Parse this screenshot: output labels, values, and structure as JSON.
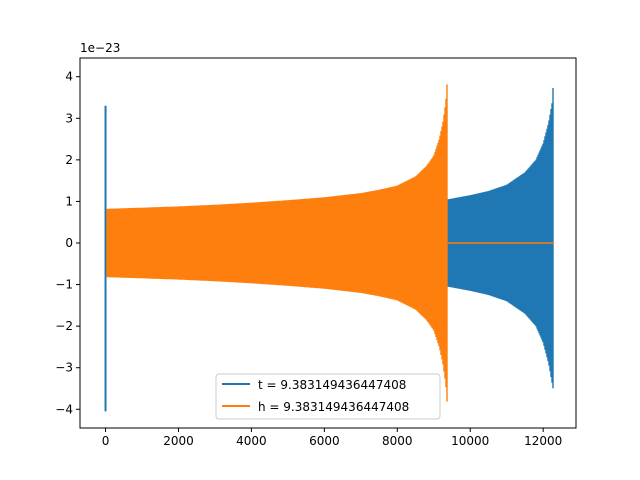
{
  "chart_data": {
    "type": "line",
    "y_offset_label": "1e−23",
    "xlim": [
      -700,
      12900
    ],
    "ylim": [
      -4.45,
      4.45
    ],
    "x_ticks": [
      0,
      2000,
      4000,
      6000,
      8000,
      10000,
      12000
    ],
    "x_tick_labels": [
      "0",
      "2000",
      "4000",
      "6000",
      "8000",
      "10000",
      "12000"
    ],
    "y_ticks": [
      -4,
      -3,
      -2,
      -1,
      0,
      1,
      2,
      3,
      4
    ],
    "y_tick_labels": [
      "−4",
      "−3",
      "−2",
      "−1",
      "0",
      "1",
      "2",
      "3",
      "4"
    ],
    "grid": false,
    "legend_position": "lower-center",
    "series": [
      {
        "name": "t = 9.383149436447408",
        "color": "#1f77b4",
        "spike": {
          "x": 0,
          "max": 3.3,
          "min": -4.05
        },
        "envelope": {
          "x": [
            100,
            1000,
            2000,
            3000,
            4000,
            5000,
            6000,
            7000,
            8000,
            9000,
            9383,
            10000,
            10500,
            11000,
            11500,
            11800,
            12000,
            12150,
            12250,
            12290
          ],
          "upper": [
            0.82,
            0.84,
            0.86,
            0.88,
            0.9,
            0.92,
            0.95,
            0.98,
            1.0,
            1.03,
            1.05,
            1.15,
            1.25,
            1.4,
            1.7,
            2.0,
            2.4,
            2.9,
            3.4,
            4.08
          ],
          "lower": [
            -0.82,
            -0.84,
            -0.86,
            -0.88,
            -0.9,
            -0.92,
            -0.95,
            -0.98,
            -1.0,
            -1.03,
            -1.05,
            -1.15,
            -1.25,
            -1.4,
            -1.7,
            -2.0,
            -2.4,
            -2.9,
            -3.4,
            -3.6
          ]
        }
      },
      {
        "name": "h = 9.383149436447408",
        "color": "#ff7f0e",
        "envelope": {
          "x": [
            0,
            1000,
            2000,
            3000,
            4000,
            5000,
            6000,
            7000,
            7500,
            8000,
            8500,
            8800,
            9000,
            9150,
            9250,
            9330,
            9383
          ],
          "upper": [
            0.82,
            0.85,
            0.88,
            0.92,
            0.97,
            1.03,
            1.1,
            1.2,
            1.28,
            1.38,
            1.6,
            1.85,
            2.1,
            2.5,
            2.9,
            3.4,
            4.07
          ],
          "lower": [
            -0.82,
            -0.85,
            -0.88,
            -0.92,
            -0.97,
            -1.03,
            -1.1,
            -1.2,
            -1.28,
            -1.38,
            -1.6,
            -1.85,
            -2.1,
            -2.5,
            -2.9,
            -3.4,
            -4.07
          ]
        },
        "flat": {
          "x_start": 9383,
          "x_end": 12300,
          "y": 0
        }
      }
    ]
  }
}
